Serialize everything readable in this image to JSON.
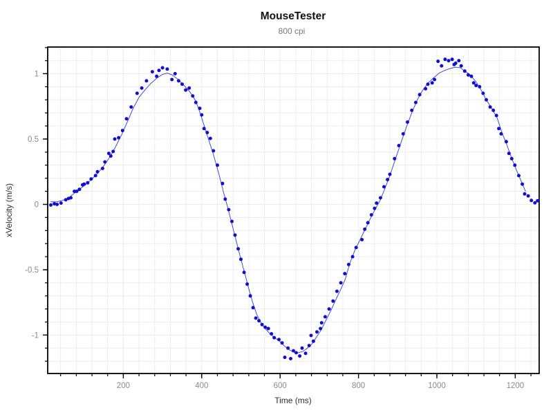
{
  "window": {
    "background": "#ffffff"
  },
  "chart_data": {
    "type": "scatter",
    "title": "MouseTester",
    "subtitle": "800 cpi",
    "xlabel": "Time (ms)",
    "ylabel": "xVelocity (m/s)",
    "xlim": [
      7,
      1261
    ],
    "ylim": [
      -1.294,
      1.204
    ],
    "x_major_ticks": [
      200,
      400,
      600,
      800,
      1000,
      1200
    ],
    "x_minor_step": 40,
    "y_major_ticks": [
      -1,
      -0.5,
      0,
      0.5,
      1
    ],
    "y_minor_step": 0.1,
    "grid": true,
    "legend": "none",
    "colors": {
      "points": "#0f0fd4",
      "line": "#4747dd",
      "grid": "#ececec",
      "axis": "#000000",
      "tick_labels": "#8a8a8a",
      "axis_labels": "#2e2e2e",
      "title": "#111111",
      "subtitle": "#787878",
      "background": "#ffffff"
    },
    "series": [
      {
        "name": "xVelocity data points",
        "type": "scatter",
        "points": [
          [
            15,
            -0.005
          ],
          [
            24,
            0.005
          ],
          [
            31,
            0.0
          ],
          [
            41,
            0.01
          ],
          [
            53,
            0.035
          ],
          [
            60,
            0.045
          ],
          [
            66,
            0.05
          ],
          [
            75,
            0.1
          ],
          [
            81,
            0.1
          ],
          [
            88,
            0.115
          ],
          [
            96,
            0.15
          ],
          [
            100,
            0.155
          ],
          [
            109,
            0.165
          ],
          [
            118,
            0.195
          ],
          [
            129,
            0.22
          ],
          [
            134,
            0.25
          ],
          [
            147,
            0.275
          ],
          [
            153,
            0.325
          ],
          [
            163,
            0.39
          ],
          [
            168,
            0.37
          ],
          [
            174,
            0.405
          ],
          [
            178,
            0.5
          ],
          [
            188,
            0.51
          ],
          [
            198,
            0.565
          ],
          [
            208,
            0.655
          ],
          [
            220,
            0.745
          ],
          [
            235,
            0.85
          ],
          [
            247,
            0.89
          ],
          [
            259,
            0.945
          ],
          [
            274,
            1.015
          ],
          [
            285,
            0.98
          ],
          [
            291,
            1.025
          ],
          [
            300,
            1.045
          ],
          [
            312,
            1.035
          ],
          [
            324,
            0.955
          ],
          [
            332,
            1.0
          ],
          [
            341,
            0.945
          ],
          [
            350,
            0.92
          ],
          [
            359,
            0.875
          ],
          [
            368,
            0.89
          ],
          [
            377,
            0.83
          ],
          [
            385,
            0.78
          ],
          [
            395,
            0.735
          ],
          [
            400,
            0.685
          ],
          [
            406,
            0.58
          ],
          [
            414,
            0.55
          ],
          [
            422,
            0.505
          ],
          [
            430,
            0.41
          ],
          [
            440,
            0.3
          ],
          [
            453,
            0.16
          ],
          [
            460,
            0.04
          ],
          [
            469,
            -0.04
          ],
          [
            477,
            -0.13
          ],
          [
            485,
            -0.235
          ],
          [
            493,
            -0.34
          ],
          [
            500,
            -0.42
          ],
          [
            508,
            -0.52
          ],
          [
            516,
            -0.61
          ],
          [
            524,
            -0.7
          ],
          [
            531,
            -0.79
          ],
          [
            538,
            -0.87
          ],
          [
            546,
            -0.89
          ],
          [
            554,
            -0.92
          ],
          [
            562,
            -0.94
          ],
          [
            570,
            -0.95
          ],
          [
            578,
            -0.99
          ],
          [
            585,
            -1.02
          ],
          [
            597,
            -1.034
          ],
          [
            605,
            -1.06
          ],
          [
            612,
            -1.17
          ],
          [
            620,
            -1.1
          ],
          [
            627,
            -1.18
          ],
          [
            634,
            -1.12
          ],
          [
            641,
            -1.135
          ],
          [
            650,
            -1.16
          ],
          [
            656,
            -1.1
          ],
          [
            665,
            -1.14
          ],
          [
            674,
            -1.08
          ],
          [
            679,
            -1.003
          ],
          [
            685,
            -1.047
          ],
          [
            694,
            -0.976
          ],
          [
            703,
            -0.95
          ],
          [
            706,
            -0.906
          ],
          [
            715,
            -0.86
          ],
          [
            725,
            -0.8
          ],
          [
            735,
            -0.74
          ],
          [
            745,
            -0.665
          ],
          [
            755,
            -0.6
          ],
          [
            765,
            -0.53
          ],
          [
            775,
            -0.46
          ],
          [
            785,
            -0.4
          ],
          [
            794,
            -0.33
          ],
          [
            809,
            -0.27
          ],
          [
            816,
            -0.19
          ],
          [
            824,
            -0.14
          ],
          [
            833,
            -0.08
          ],
          [
            841,
            -0.03
          ],
          [
            846,
            0.01
          ],
          [
            856,
            0.05
          ],
          [
            865,
            0.135
          ],
          [
            874,
            0.19
          ],
          [
            880,
            0.23
          ],
          [
            892,
            0.35
          ],
          [
            903,
            0.45
          ],
          [
            914,
            0.54
          ],
          [
            925,
            0.63
          ],
          [
            936,
            0.72
          ],
          [
            946,
            0.78
          ],
          [
            956,
            0.84
          ],
          [
            971,
            0.885
          ],
          [
            977,
            0.92
          ],
          [
            988,
            0.93
          ],
          [
            994,
            0.955
          ],
          [
            1003,
            1.095
          ],
          [
            1012,
            1.06
          ],
          [
            1021,
            1.11
          ],
          [
            1030,
            1.1
          ],
          [
            1039,
            1.11
          ],
          [
            1044,
            1.07
          ],
          [
            1048,
            1.08
          ],
          [
            1056,
            1.1
          ],
          [
            1062,
            1.06
          ],
          [
            1071,
            1.02
          ],
          [
            1080,
            0.99
          ],
          [
            1088,
            0.98
          ],
          [
            1094,
            0.93
          ],
          [
            1100,
            0.91
          ],
          [
            1109,
            0.9
          ],
          [
            1118,
            0.85
          ],
          [
            1126,
            0.8
          ],
          [
            1136,
            0.745
          ],
          [
            1144,
            0.72
          ],
          [
            1152,
            0.68
          ],
          [
            1158,
            0.58
          ],
          [
            1164,
            0.54
          ],
          [
            1177,
            0.48
          ],
          [
            1184,
            0.39
          ],
          [
            1191,
            0.35
          ],
          [
            1199,
            0.3
          ],
          [
            1209,
            0.22
          ],
          [
            1218,
            0.155
          ],
          [
            1224,
            0.08
          ],
          [
            1233,
            0.065
          ],
          [
            1241,
            0.03
          ],
          [
            1250,
            0.012
          ],
          [
            1257,
            0.028
          ]
        ]
      },
      {
        "name": "xVelocity fitted line",
        "type": "line",
        "points": [
          [
            15,
            0.02
          ],
          [
            30,
            0.02
          ],
          [
            45,
            0.03
          ],
          [
            60,
            0.05
          ],
          [
            75,
            0.085
          ],
          [
            90,
            0.12
          ],
          [
            105,
            0.155
          ],
          [
            120,
            0.195
          ],
          [
            135,
            0.24
          ],
          [
            150,
            0.295
          ],
          [
            165,
            0.36
          ],
          [
            180,
            0.44
          ],
          [
            195,
            0.53
          ],
          [
            210,
            0.63
          ],
          [
            225,
            0.735
          ],
          [
            240,
            0.82
          ],
          [
            255,
            0.875
          ],
          [
            270,
            0.925
          ],
          [
            285,
            0.965
          ],
          [
            300,
            0.995
          ],
          [
            312,
            1.005
          ],
          [
            325,
            0.99
          ],
          [
            340,
            0.955
          ],
          [
            355,
            0.91
          ],
          [
            370,
            0.86
          ],
          [
            385,
            0.79
          ],
          [
            397,
            0.69
          ],
          [
            415,
            0.52
          ],
          [
            430,
            0.38
          ],
          [
            445,
            0.22
          ],
          [
            455,
            0.1
          ],
          [
            466,
            -0.02
          ],
          [
            477,
            -0.15
          ],
          [
            488,
            -0.28
          ],
          [
            500,
            -0.42
          ],
          [
            510,
            -0.53
          ],
          [
            520,
            -0.645
          ],
          [
            530,
            -0.75
          ],
          [
            540,
            -0.84
          ],
          [
            550,
            -0.9
          ],
          [
            562,
            -0.95
          ],
          [
            574,
            -0.99
          ],
          [
            586,
            -1.02
          ],
          [
            598,
            -1.045
          ],
          [
            610,
            -1.08
          ],
          [
            622,
            -1.11
          ],
          [
            634,
            -1.13
          ],
          [
            646,
            -1.135
          ],
          [
            658,
            -1.125
          ],
          [
            670,
            -1.1
          ],
          [
            682,
            -1.065
          ],
          [
            694,
            -1.01
          ],
          [
            706,
            -0.955
          ],
          [
            718,
            -0.88
          ],
          [
            730,
            -0.81
          ],
          [
            742,
            -0.73
          ],
          [
            754,
            -0.655
          ],
          [
            766,
            -0.575
          ],
          [
            778,
            -0.45
          ],
          [
            791,
            -0.35
          ],
          [
            804,
            -0.27
          ],
          [
            817,
            -0.19
          ],
          [
            830,
            -0.11
          ],
          [
            843,
            -0.035
          ],
          [
            855,
            0.03
          ],
          [
            866,
            0.11
          ],
          [
            880,
            0.22
          ],
          [
            894,
            0.345
          ],
          [
            908,
            0.47
          ],
          [
            922,
            0.59
          ],
          [
            936,
            0.7
          ],
          [
            950,
            0.8
          ],
          [
            964,
            0.875
          ],
          [
            978,
            0.93
          ],
          [
            992,
            0.97
          ],
          [
            1006,
            1.005
          ],
          [
            1020,
            1.025
          ],
          [
            1034,
            1.04
          ],
          [
            1048,
            1.05
          ],
          [
            1060,
            1.045
          ],
          [
            1072,
            1.02
          ],
          [
            1085,
            0.99
          ],
          [
            1098,
            0.945
          ],
          [
            1112,
            0.88
          ],
          [
            1126,
            0.8
          ],
          [
            1140,
            0.735
          ],
          [
            1154,
            0.66
          ],
          [
            1166,
            0.55
          ],
          [
            1178,
            0.46
          ],
          [
            1190,
            0.36
          ],
          [
            1202,
            0.27
          ],
          [
            1214,
            0.185
          ],
          [
            1226,
            0.1
          ]
        ]
      }
    ]
  }
}
